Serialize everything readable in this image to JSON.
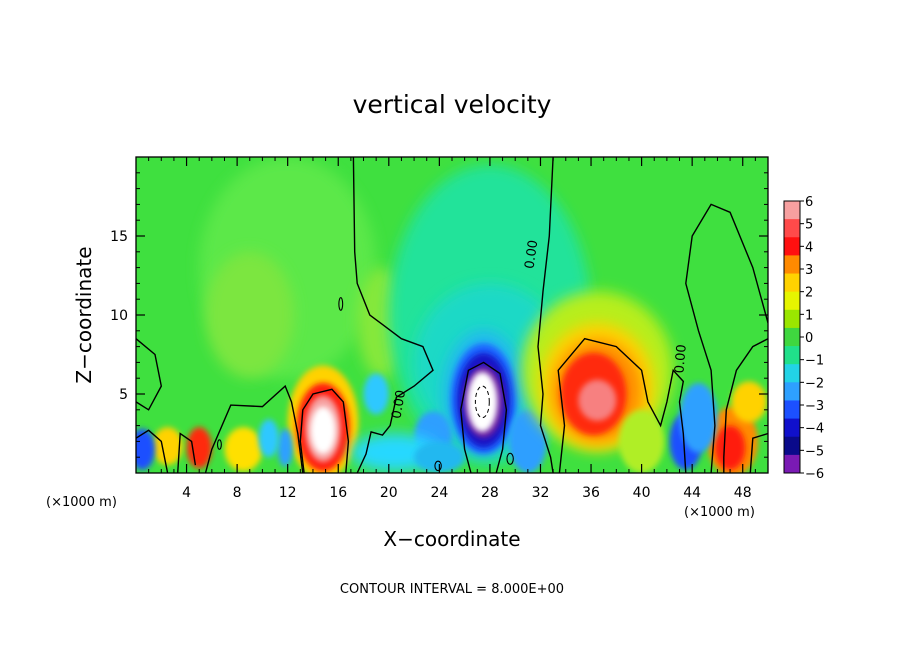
{
  "chart_data": {
    "type": "heatmap",
    "title": "vertical velocity",
    "xlabel": "X−coordinate",
    "ylabel": "Z−coordinate",
    "x_unit": "(×1000 m)",
    "x_unit_right": "(×1000 m)",
    "footnote": "CONTOUR INTERVAL = 8.000E+00",
    "xlim": [
      0,
      50
    ],
    "ylim": [
      0,
      20
    ],
    "x_ticks": [
      4,
      8,
      12,
      16,
      20,
      24,
      28,
      32,
      36,
      40,
      44,
      48
    ],
    "y_ticks": [
      5,
      10,
      15
    ],
    "contour_label": "0.00",
    "colorbar": {
      "ticks": [
        "6",
        "5",
        "4",
        "3",
        "2",
        "1",
        "0",
        "−1",
        "−2",
        "−3",
        "−4",
        "−5",
        "−6"
      ],
      "colors": [
        "#f7a0a0",
        "#ff4a4a",
        "#ff1010",
        "#ff8a00",
        "#ffd200",
        "#e6f500",
        "#9ae600",
        "#3fd73f",
        "#20e08a",
        "#22d3e6",
        "#2ea0ff",
        "#1c50ff",
        "#1010cc",
        "#0a0a8a",
        "#7a1ab4"
      ]
    },
    "features": [
      {
        "name": "updraft core",
        "x": 14.8,
        "z": 2.8,
        "w": 8
      },
      {
        "name": "downdraft core",
        "x": 27.5,
        "z": 4.5,
        "w": -8
      },
      {
        "name": "updraft region",
        "x": 36,
        "z": 5,
        "w": 4.5
      },
      {
        "name": "updraft",
        "x": 47,
        "z": 1.5,
        "w": 4
      },
      {
        "name": "updraft",
        "x": 5,
        "z": 1.4,
        "w": 3
      },
      {
        "name": "weak downdraft",
        "x": 31,
        "z": 1.5,
        "w": -3
      },
      {
        "name": "weak downdraft",
        "x": 43,
        "z": 2,
        "w": -3
      },
      {
        "name": "downdraft",
        "x": 0.5,
        "z": 1.5,
        "w": -4
      }
    ]
  }
}
